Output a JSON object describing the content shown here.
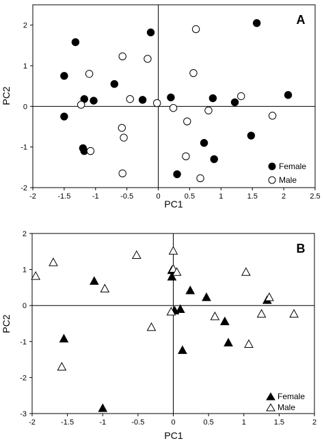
{
  "chart_data": [
    {
      "type": "scatter",
      "panel_label": "A",
      "xlabel": "PC1",
      "ylabel": "PC2",
      "xlim": [
        -2,
        2.5
      ],
      "ylim": [
        -2,
        2.5
      ],
      "xticks": [
        "-2",
        "-1.5",
        "-1",
        "-0.5",
        "0",
        "0.5",
        "1",
        "1.5",
        "2",
        "2.5"
      ],
      "yticks": [
        "-2",
        "-1",
        "0",
        "1",
        "2"
      ],
      "grid": false,
      "legend_position": "bottom-right",
      "series": [
        {
          "name": "Female",
          "marker": "circle",
          "filled": true,
          "points": [
            [
              -1.5,
              0.75
            ],
            [
              -1.32,
              1.58
            ],
            [
              -1.18,
              0.18
            ],
            [
              -1.03,
              0.14
            ],
            [
              -0.7,
              0.55
            ],
            [
              -0.25,
              0.16
            ],
            [
              -0.12,
              1.82
            ],
            [
              0.2,
              0.22
            ],
            [
              0.87,
              0.2
            ],
            [
              1.22,
              0.1
            ],
            [
              1.57,
              2.05
            ],
            [
              2.07,
              0.28
            ],
            [
              -1.5,
              -0.25
            ],
            [
              -1.2,
              -1.03
            ],
            [
              -1.18,
              -1.1
            ],
            [
              0.3,
              -1.67
            ],
            [
              0.73,
              -0.9
            ],
            [
              0.89,
              -1.3
            ],
            [
              1.48,
              -0.72
            ]
          ]
        },
        {
          "name": "Male",
          "marker": "circle",
          "filled": false,
          "points": [
            [
              -1.23,
              0.04
            ],
            [
              -1.1,
              0.8
            ],
            [
              -0.57,
              1.23
            ],
            [
              -0.45,
              0.18
            ],
            [
              -0.17,
              1.17
            ],
            [
              -0.02,
              0.08
            ],
            [
              0.24,
              -0.04
            ],
            [
              0.56,
              0.82
            ],
            [
              0.6,
              1.9
            ],
            [
              0.8,
              -0.1
            ],
            [
              1.32,
              0.25
            ],
            [
              1.82,
              -0.23
            ],
            [
              -0.58,
              -0.53
            ],
            [
              -0.55,
              -0.77
            ],
            [
              -1.08,
              -1.1
            ],
            [
              -0.57,
              -1.65
            ],
            [
              0.46,
              -0.37
            ],
            [
              0.44,
              -1.23
            ],
            [
              0.67,
              -1.77
            ]
          ]
        }
      ]
    },
    {
      "type": "scatter",
      "panel_label": "B",
      "xlabel": "PC1",
      "ylabel": "PC2",
      "xlim": [
        -2,
        2
      ],
      "ylim": [
        -3,
        2
      ],
      "xticks": [
        "-2",
        "-1.5",
        "-1",
        "-0.5",
        "0",
        "0.5",
        "1",
        "1.5",
        "2"
      ],
      "yticks": [
        "-3",
        "-2",
        "-1",
        "0",
        "1",
        "2"
      ],
      "grid": false,
      "legend_position": "bottom-right",
      "series": [
        {
          "name": "Female",
          "marker": "triangle",
          "filled": true,
          "points": [
            [
              -1.12,
              0.68
            ],
            [
              -0.02,
              0.98
            ],
            [
              -0.02,
              0.8
            ],
            [
              0.24,
              0.42
            ],
            [
              0.47,
              0.23
            ],
            [
              1.33,
              0.15
            ],
            [
              -1.55,
              -0.92
            ],
            [
              -1.0,
              -2.85
            ],
            [
              0.1,
              -0.1
            ],
            [
              0.02,
              -0.14
            ],
            [
              0.13,
              -1.24
            ],
            [
              0.73,
              -0.44
            ],
            [
              0.78,
              -1.03
            ]
          ]
        },
        {
          "name": "Male",
          "marker": "triangle",
          "filled": false,
          "points": [
            [
              -1.95,
              0.82
            ],
            [
              -1.7,
              1.2
            ],
            [
              -0.97,
              0.47
            ],
            [
              -0.52,
              1.4
            ],
            [
              0.0,
              1.52
            ],
            [
              0.0,
              1.02
            ],
            [
              0.05,
              0.93
            ],
            [
              1.03,
              0.93
            ],
            [
              1.36,
              0.23
            ],
            [
              -0.03,
              -0.17
            ],
            [
              -0.31,
              -0.6
            ],
            [
              0.59,
              -0.3
            ],
            [
              1.25,
              -0.23
            ],
            [
              1.71,
              -0.23
            ],
            [
              -1.58,
              -1.7
            ],
            [
              1.07,
              -1.07
            ]
          ]
        }
      ]
    }
  ]
}
